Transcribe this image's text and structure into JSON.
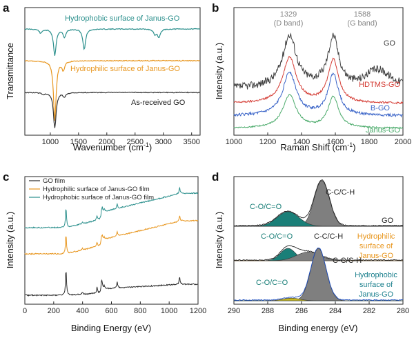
{
  "chart_data": [
    {
      "panel": "a",
      "type": "line",
      "xlabel": "Wavenumber (cm",
      "xlabel_sup": "-1",
      "xlabel_end": ")",
      "ylabel": "Transmittance",
      "xlim": [
        550,
        3650
      ],
      "xticks": [
        "1000",
        "1500",
        "2000",
        "2500",
        "3000",
        "3500"
      ],
      "series": [
        {
          "name": "Hydrophobic surface of Janus-GO",
          "color": "#2a8f8c",
          "dips": [
            [
              830,
              0.15
            ],
            [
              1080,
              0.95
            ],
            [
              1250,
              0.3
            ],
            [
              1600,
              0.75
            ],
            [
              2850,
              0.2
            ],
            [
              2920,
              0.3
            ]
          ]
        },
        {
          "name": "Hydrophilic surface of Janus-GO",
          "color": "#e8961e",
          "dips": [
            [
              1080,
              1.0
            ],
            [
              1230,
              0.15
            ]
          ]
        },
        {
          "name": "As-received GO",
          "color": "#333333",
          "dips": [
            [
              1080,
              1.0
            ],
            [
              1250,
              0.12
            ],
            [
              870,
              0.05
            ]
          ]
        }
      ]
    },
    {
      "panel": "b",
      "type": "line",
      "xlabel": "Raman Shift (cm",
      "xlabel_sup": "-1",
      "xlabel_end": ")",
      "ylabel": "Intensity (a.u.)",
      "xlim": [
        1000,
        2000
      ],
      "xticks": [
        "1000",
        "1200",
        "1400",
        "1600",
        "1800",
        "2000"
      ],
      "band_labels": [
        {
          "pos": "1329",
          "name": "(D band)"
        },
        {
          "pos": "1588",
          "name": "(G band)"
        }
      ],
      "band_positions": [
        1329,
        1588
      ],
      "series": [
        {
          "name": "GO",
          "color": "#404040",
          "noise": 0.07
        },
        {
          "name": "HDTMS-GO",
          "color": "#d43a32",
          "noise": 0.02
        },
        {
          "name": "B-GO",
          "color": "#3a64c8",
          "noise": 0.03
        },
        {
          "name": "Janus-GO",
          "color": "#4aaa6a",
          "noise": 0.02
        }
      ]
    },
    {
      "panel": "c",
      "type": "line",
      "xlabel": "Binding Energy (eV)",
      "ylabel": "Intensity (a.u.)",
      "xlim": [
        0,
        1200
      ],
      "xticks": [
        "0",
        "200",
        "400",
        "600",
        "800",
        "1000",
        "1200"
      ],
      "peaks": [
        [
          285,
          1.0
        ],
        [
          400,
          0.08
        ],
        [
          500,
          0.22
        ],
        [
          532,
          0.55
        ],
        [
          550,
          0.12
        ],
        [
          640,
          0.22
        ],
        [
          1072,
          0.28
        ]
      ],
      "series": [
        {
          "name": "GO film",
          "color": "#2a2a2a"
        },
        {
          "name": "Hydrophilic surface of Janus-GO film",
          "color": "#e8961e"
        },
        {
          "name": "Hydrophobic surface of Janus-GO film",
          "color": "#2a8f8c"
        }
      ]
    },
    {
      "panel": "d",
      "type": "area",
      "xlabel": "Binding energy (eV)",
      "ylabel": "Intensity (a.u.)",
      "xlim": [
        290,
        280
      ],
      "xticks": [
        "290",
        "288",
        "286",
        "284",
        "282",
        "280"
      ],
      "spectra": [
        {
          "name": "GO",
          "color": "#222222",
          "components": [
            {
              "label": "C-C/C-H",
              "center": 284.8,
              "height": 1.0,
              "width": 0.45,
              "fill": "#7f7f7f"
            },
            {
              "label": "C-O/C=O",
              "center": 286.8,
              "height": 0.32,
              "width": 0.65,
              "fill": "#1a7f78"
            }
          ]
        },
        {
          "name": "Hydrophilic surface of Janus-GO",
          "color": "#e8961e",
          "components": [
            {
              "label": "C-O/C=O",
              "center": 286.8,
              "height": 0.5,
              "width": 0.45,
              "fill": "#1a7f78"
            },
            {
              "label": "C-C/C-H",
              "center": 285.6,
              "height": 0.35,
              "width": 0.7,
              "fill": "#7f7f7f"
            }
          ]
        },
        {
          "name": "Hydrophobic surface of Janus-GO",
          "color": "#1a7f8c",
          "components": [
            {
              "label": "C-C/C-H",
              "center": 285.0,
              "height": 1.0,
              "width": 0.45,
              "fill": "#7f7f7f"
            },
            {
              "label": "C-O/C=O",
              "center": 286.6,
              "height": 0.05,
              "width": 0.5,
              "fill": "#c8b820"
            }
          ]
        }
      ]
    }
  ],
  "labels": {
    "panel_a": "a",
    "panel_b": "b",
    "panel_c": "c",
    "panel_d": "d",
    "d_go": "GO",
    "d_hydrophilic_1": "Hydrophilic",
    "d_hydrophilic_2": "surface of",
    "d_hydrophilic_3": "Janus-GO",
    "d_hydrophobic_1": "Hydrophobic",
    "d_hydrophobic_2": "surface of",
    "d_hydrophobic_3": "Janus-GO",
    "d_go_cc": "C-C/C-H",
    "d_go_co": "C-O/C=O",
    "d_hl_cc": "C-C/C-H",
    "d_hl_co": "C-O/C=O",
    "d_hb_cc": "C-C/C-H",
    "d_hb_co": "C-O/C=O"
  }
}
